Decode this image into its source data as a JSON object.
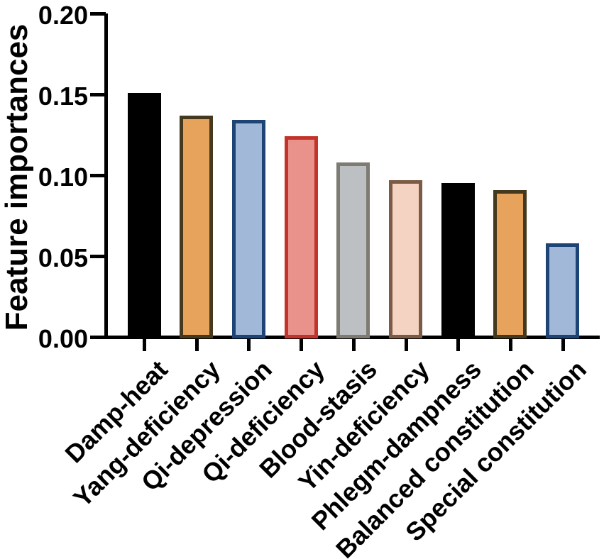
{
  "figure": {
    "background": "#ffffff"
  },
  "chart_data": {
    "type": "bar",
    "title": "",
    "xlabel": "",
    "ylabel": "Feature importances",
    "categories": [
      "Damp-heat",
      "Yang-deficiency",
      "Qi-depression",
      "Qi-deficiency",
      "Blood-stasis",
      "Yin-deficiency",
      "Phlegm-dampness",
      "Balanced constitution",
      "Special constitution"
    ],
    "values": [
      0.151,
      0.137,
      0.134,
      0.124,
      0.108,
      0.097,
      0.095,
      0.091,
      0.058
    ],
    "ylim": [
      0.0,
      0.2
    ],
    "yticks": [
      {
        "value": 0.0,
        "label": "0.00"
      },
      {
        "value": 0.05,
        "label": "0.05"
      },
      {
        "value": 0.1,
        "label": "0.10"
      },
      {
        "value": 0.15,
        "label": "0.15"
      },
      {
        "value": 0.2,
        "label": "0.20"
      }
    ],
    "grid": false,
    "legend": null,
    "bar_colors": [
      {
        "fill": "#000000",
        "border": "#000000"
      },
      {
        "fill": "#E7A35C",
        "border": "#44381F"
      },
      {
        "fill": "#A2B8D8",
        "border": "#1E4476"
      },
      {
        "fill": "#E8928B",
        "border": "#C2342B"
      },
      {
        "fill": "#BDC0C3",
        "border": "#7E7B72"
      },
      {
        "fill": "#F4D3C2",
        "border": "#7B5B45"
      },
      {
        "fill": "#000000",
        "border": "#000000"
      },
      {
        "fill": "#E7A35C",
        "border": "#44381F"
      },
      {
        "fill": "#A2B8D8",
        "border": "#1E4476"
      }
    ],
    "axis_color": "#000000",
    "text_color": "#000000"
  }
}
